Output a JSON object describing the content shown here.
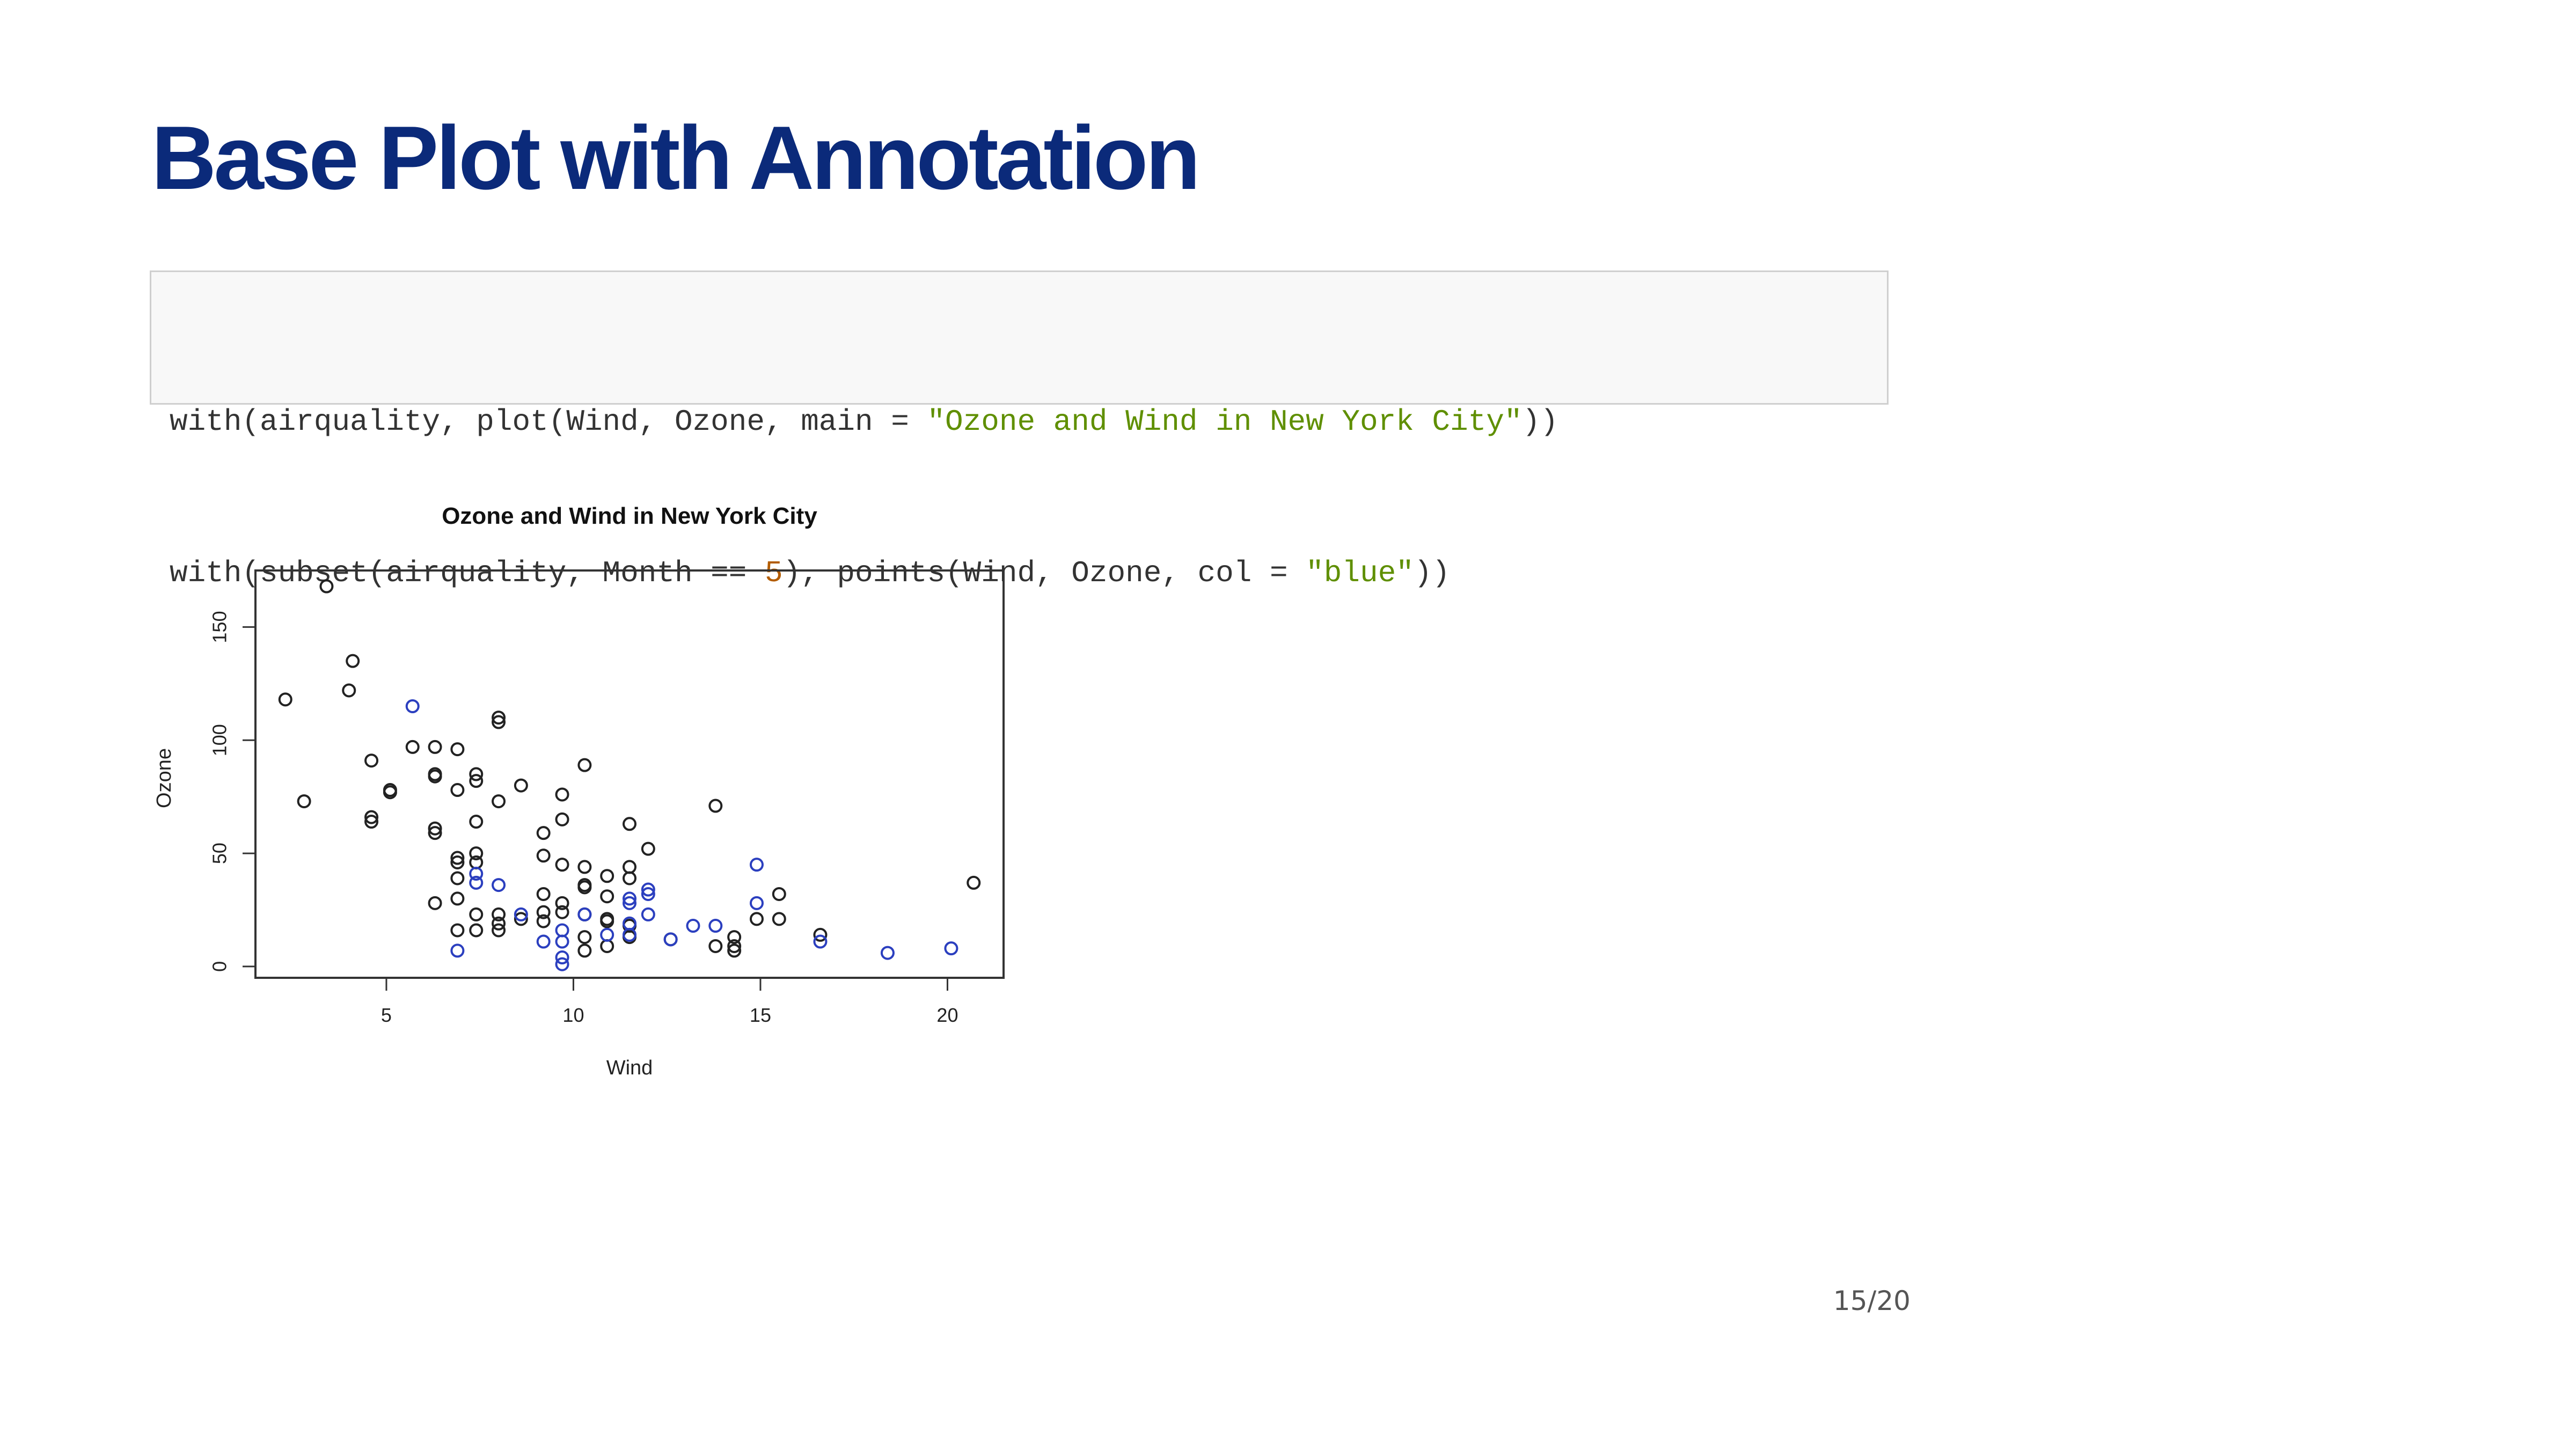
{
  "slide": {
    "title": "Base Plot with Annotation",
    "page_number": "15/20",
    "title_color": "#0b2a7a"
  },
  "code": {
    "line1": {
      "prefix": "with(airquality, plot(Wind, Ozone, main = ",
      "string": "\"Ozone and Wind in New York City\"",
      "suffix": "))"
    },
    "line2": {
      "prefix": "with(subset(airquality, Month == ",
      "number": "5",
      "middle": "), points(Wind, Ozone, col = ",
      "string": "\"blue\"",
      "suffix": "))"
    },
    "colors": {
      "string": "#5f8f00",
      "number": "#b35c00",
      "text": "#333333"
    }
  },
  "chart_data": {
    "type": "scatter",
    "title": "Ozone and Wind in New York City",
    "xlabel": "Wind",
    "ylabel": "Ozone",
    "xlim": [
      1.5,
      21.5
    ],
    "ylim": [
      -5,
      175
    ],
    "xticks": [
      5,
      10,
      15,
      20
    ],
    "yticks": [
      0,
      50,
      100,
      150
    ],
    "grid": false,
    "legend": "none",
    "series": [
      {
        "color": "#222222",
        "points": [
          [
            2.3,
            118
          ],
          [
            2.8,
            73
          ],
          [
            3.4,
            168
          ],
          [
            4.0,
            122
          ],
          [
            4.1,
            135
          ],
          [
            4.6,
            91
          ],
          [
            4.6,
            66
          ],
          [
            4.6,
            64
          ],
          [
            5.1,
            78
          ],
          [
            5.1,
            77
          ],
          [
            5.7,
            97
          ],
          [
            6.3,
            85
          ],
          [
            6.3,
            84
          ],
          [
            6.3,
            97
          ],
          [
            6.3,
            61
          ],
          [
            6.3,
            59
          ],
          [
            6.3,
            28
          ],
          [
            6.9,
            96
          ],
          [
            6.9,
            78
          ],
          [
            6.9,
            48
          ],
          [
            6.9,
            46
          ],
          [
            6.9,
            39
          ],
          [
            6.9,
            30
          ],
          [
            6.9,
            16
          ],
          [
            7.4,
            85
          ],
          [
            7.4,
            82
          ],
          [
            7.4,
            64
          ],
          [
            7.4,
            50
          ],
          [
            7.4,
            46
          ],
          [
            7.4,
            23
          ],
          [
            7.4,
            16
          ],
          [
            8.0,
            110
          ],
          [
            8.0,
            108
          ],
          [
            8.0,
            73
          ],
          [
            8.0,
            23
          ],
          [
            8.0,
            19
          ],
          [
            8.0,
            16
          ],
          [
            8.6,
            80
          ],
          [
            8.6,
            21
          ],
          [
            9.2,
            59
          ],
          [
            9.2,
            49
          ],
          [
            9.2,
            32
          ],
          [
            9.2,
            24
          ],
          [
            9.2,
            20
          ],
          [
            9.7,
            76
          ],
          [
            9.7,
            65
          ],
          [
            9.7,
            45
          ],
          [
            9.7,
            28
          ],
          [
            9.7,
            24
          ],
          [
            10.3,
            89
          ],
          [
            10.3,
            44
          ],
          [
            10.3,
            36
          ],
          [
            10.3,
            35
          ],
          [
            10.3,
            23
          ],
          [
            10.3,
            13
          ],
          [
            10.3,
            7
          ],
          [
            10.9,
            40
          ],
          [
            10.9,
            31
          ],
          [
            10.9,
            21
          ],
          [
            10.9,
            20
          ],
          [
            10.9,
            9
          ],
          [
            11.5,
            63
          ],
          [
            11.5,
            44
          ],
          [
            11.5,
            39
          ],
          [
            11.5,
            18
          ],
          [
            11.5,
            13
          ],
          [
            12.0,
            52
          ],
          [
            12.6,
            12
          ],
          [
            13.8,
            71
          ],
          [
            13.8,
            9
          ],
          [
            14.3,
            13
          ],
          [
            14.3,
            9
          ],
          [
            14.3,
            7
          ],
          [
            14.9,
            21
          ],
          [
            15.5,
            32
          ],
          [
            15.5,
            21
          ],
          [
            16.6,
            14
          ],
          [
            20.7,
            37
          ]
        ]
      },
      {
        "name": "",
        "color": "#2b3fbf",
        "points": [
          [
            5.7,
            115
          ],
          [
            7.4,
            41
          ],
          [
            7.4,
            37
          ],
          [
            8.0,
            36
          ],
          [
            8.6,
            23
          ],
          [
            9.2,
            11
          ],
          [
            9.7,
            4
          ],
          [
            9.7,
            1
          ],
          [
            9.7,
            11
          ],
          [
            9.7,
            16
          ],
          [
            10.3,
            23
          ],
          [
            10.9,
            14
          ],
          [
            11.5,
            30
          ],
          [
            11.5,
            28
          ],
          [
            11.5,
            19
          ],
          [
            11.5,
            14
          ],
          [
            12.0,
            34
          ],
          [
            12.0,
            32
          ],
          [
            12.0,
            23
          ],
          [
            12.6,
            12
          ],
          [
            13.2,
            18
          ],
          [
            13.8,
            18
          ],
          [
            14.9,
            45
          ],
          [
            14.9,
            28
          ],
          [
            16.6,
            11
          ],
          [
            18.4,
            6
          ],
          [
            20.1,
            8
          ],
          [
            6.9,
            7
          ]
        ]
      }
    ]
  }
}
